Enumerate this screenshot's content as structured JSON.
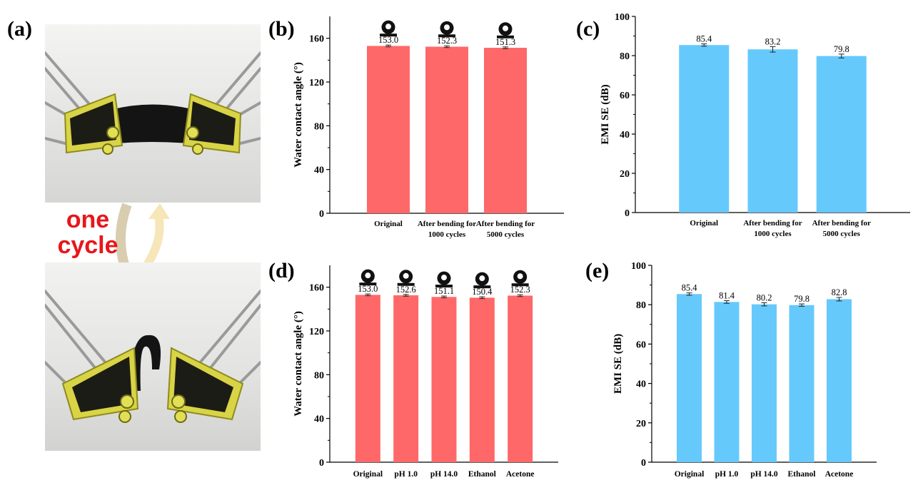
{
  "panel_labels": {
    "a": "(a)",
    "b": "(b)",
    "c": "(c)",
    "d": "(d)",
    "e": "(e)"
  },
  "photo_panel": {
    "cycle_label_line1": "one",
    "cycle_label_line2": "cycle",
    "colors": {
      "text": "#e8161a",
      "arrow_down": "#d9cdb0",
      "arrow_up": "#f6e6b8",
      "clip": "#dcd84a",
      "film": "#111111"
    }
  },
  "colors": {
    "wca_bar": "#ff6868",
    "emi_bar": "#66c9fb"
  },
  "chart_data": [
    {
      "id": "b",
      "type": "bar",
      "categories": [
        "Original",
        "After bending for\n1000 cycles",
        "After bending for\n5000 cycles"
      ],
      "values": [
        153.0,
        152.3,
        151.3
      ],
      "value_labels": [
        "153.0",
        "152.3",
        "151.3"
      ],
      "errors": [
        0.8,
        0.8,
        0.8
      ],
      "ylabel": "Water contact angle (°)",
      "ylim": [
        0,
        180
      ],
      "yticks": [
        0,
        40,
        80,
        120,
        160
      ],
      "droplet_icons": true
    },
    {
      "id": "c",
      "type": "bar",
      "categories": [
        "Original",
        "After bending for\n1000 cycles",
        "After bending for\n5000 cycles"
      ],
      "values": [
        85.4,
        83.2,
        79.8
      ],
      "value_labels": [
        "85.4",
        "83.2",
        "79.8"
      ],
      "errors": [
        0.6,
        1.4,
        1.0
      ],
      "ylabel": "EMI SE (dB)",
      "ylim": [
        0,
        100
      ],
      "yticks": [
        0,
        20,
        40,
        60,
        80,
        100
      ],
      "droplet_icons": false
    },
    {
      "id": "d",
      "type": "bar",
      "categories": [
        "Original",
        "pH 1.0",
        "pH 14.0",
        "Ethanol",
        "Acetone"
      ],
      "values": [
        153.0,
        152.6,
        151.1,
        150.4,
        152.3
      ],
      "value_labels": [
        "153.0",
        "152.6",
        "151.1",
        "150.4",
        "152.3"
      ],
      "errors": [
        0.8,
        0.8,
        0.8,
        0.8,
        0.8
      ],
      "ylabel": "Water contact angle (°)",
      "ylim": [
        0,
        180
      ],
      "yticks": [
        0,
        40,
        80,
        120,
        160
      ],
      "droplet_icons": true
    },
    {
      "id": "e",
      "type": "bar",
      "categories": [
        "Original",
        "pH 1.0",
        "pH 14.0",
        "Ethanol",
        "Acetone"
      ],
      "values": [
        85.4,
        81.4,
        80.2,
        79.8,
        82.8
      ],
      "value_labels": [
        "85.4",
        "81.4",
        "80.2",
        "79.8",
        "82.8"
      ],
      "errors": [
        0.6,
        0.7,
        0.8,
        0.6,
        0.9
      ],
      "ylabel": "EMI SE (dB)",
      "ylim": [
        0,
        100
      ],
      "yticks": [
        0,
        20,
        40,
        60,
        80,
        100
      ],
      "droplet_icons": false
    }
  ]
}
